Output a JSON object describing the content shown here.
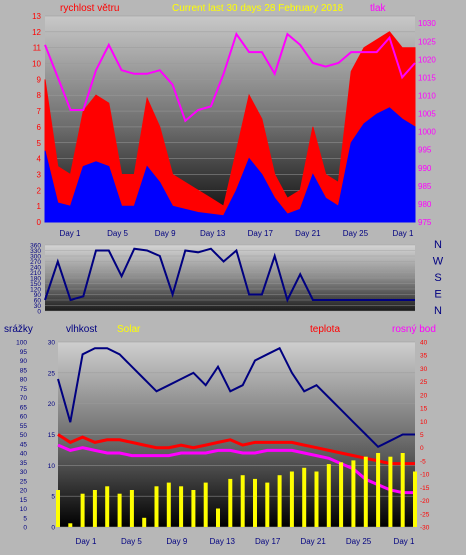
{
  "chart_data": [
    {
      "id": "wind_pressure",
      "type": "line",
      "title": "Current last 30 days 28 February 2018",
      "left_label": "rychlost větru",
      "right_label": "tlak",
      "left_range": [
        0,
        13
      ],
      "right_range": [
        975,
        1032
      ],
      "left_ticks": [
        "0",
        "1",
        "2",
        "3",
        "4",
        "5",
        "6",
        "7",
        "8",
        "9",
        "10",
        "11",
        "12",
        "13"
      ],
      "right_ticks": [
        "975",
        "980",
        "985",
        "990",
        "995",
        "1000",
        "1005",
        "1010",
        "1015",
        "1020",
        "1025",
        "1030"
      ],
      "day_ticks": [
        "Day 1",
        "Day 5",
        "Day 9",
        "Day 13",
        "Day 17",
        "Day 21",
        "Day 25",
        "Day 1"
      ],
      "series": [
        {
          "key": "gust",
          "axis": "left",
          "color": "#ff0000",
          "fill": true,
          "values": [
            9,
            3.5,
            3,
            7,
            8,
            7.5,
            3,
            3,
            7.8,
            6,
            3,
            2.5,
            2,
            1.5,
            1,
            4.5,
            8,
            6.5,
            3,
            1.5,
            2,
            6,
            3,
            2.5,
            9.5,
            11,
            11.5,
            12,
            11,
            11
          ]
        },
        {
          "key": "speed",
          "axis": "left",
          "color": "#0000ff",
          "fill": true,
          "values": [
            4.5,
            1.2,
            1,
            3.5,
            3.8,
            3.5,
            1,
            1,
            3.5,
            2.5,
            1,
            0.8,
            0.6,
            0.5,
            0.4,
            2,
            4,
            3,
            1.5,
            0.5,
            0.8,
            3,
            1.5,
            1,
            5,
            6.2,
            6.8,
            7.2,
            6.5,
            6
          ]
        },
        {
          "key": "pressure",
          "axis": "right",
          "color": "#ff00ff",
          "fill": false,
          "values": [
            1024,
            1015,
            1006,
            1006,
            1017,
            1024,
            1017,
            1016,
            1016,
            1017,
            1013,
            1003,
            1006,
            1007,
            1016,
            1027,
            1022,
            1022,
            1016,
            1027,
            1024,
            1019,
            1018,
            1019,
            1022,
            1022,
            1022,
            1026,
            1015,
            1019
          ]
        }
      ]
    },
    {
      "id": "wind_direction",
      "type": "line",
      "left_range": [
        0,
        360
      ],
      "left_ticks": [
        "0",
        "30",
        "60",
        "90",
        "120",
        "150",
        "180",
        "210",
        "240",
        "270",
        "300",
        "330",
        "360"
      ],
      "compass_labels": [
        "N",
        "W",
        "S",
        "E",
        "N"
      ],
      "series": [
        {
          "key": "direction",
          "color": "#000080",
          "fill": false,
          "values": [
            60,
            270,
            60,
            80,
            330,
            330,
            190,
            340,
            330,
            300,
            90,
            330,
            320,
            340,
            270,
            330,
            90,
            90,
            300,
            60,
            200,
            60,
            60,
            60,
            60,
            60,
            60,
            60,
            60,
            60
          ]
        }
      ]
    },
    {
      "id": "temperature_humidity",
      "type": "line",
      "labels": {
        "precip": "srážky",
        "humidity": "vlhkost",
        "solar": "Solar",
        "temp": "teplota",
        "dew": "rosný bod"
      },
      "precip_range": [
        0,
        100
      ],
      "humidity_range": [
        0,
        30
      ],
      "temp_range": [
        -30,
        40
      ],
      "precip_ticks": [
        "0",
        "5",
        "10",
        "15",
        "20",
        "25",
        "30",
        "35",
        "40",
        "45",
        "50",
        "55",
        "60",
        "65",
        "70",
        "75",
        "80",
        "85",
        "90",
        "95",
        "100"
      ],
      "humidity_ticks": [
        "0",
        "5",
        "10",
        "15",
        "20",
        "25",
        "30"
      ],
      "temp_ticks": [
        "-30",
        "-25",
        "-20",
        "-15",
        "-10",
        "-5",
        "0",
        "5",
        "10",
        "15",
        "20",
        "25",
        "30",
        "35",
        "40"
      ],
      "day_ticks": [
        "Day 1",
        "Day 5",
        "Day 9",
        "Day 13",
        "Day 17",
        "Day 21",
        "Day 25",
        "Day 1"
      ],
      "series": [
        {
          "key": "humidity",
          "axis": "humidity",
          "color": "#000080",
          "values": [
            24,
            17,
            28,
            29,
            29,
            28,
            26,
            24,
            22,
            23,
            24,
            25,
            23,
            26,
            22,
            23,
            27,
            28,
            29,
            25,
            22,
            23,
            21,
            19,
            17,
            15,
            13,
            14,
            15,
            15
          ]
        },
        {
          "key": "temperature",
          "axis": "temp",
          "color": "#ff0000",
          "values": [
            5,
            2,
            4,
            2,
            3,
            3,
            2,
            1,
            0,
            0,
            1,
            0,
            1,
            2,
            3,
            1,
            2,
            2,
            2,
            2,
            1,
            0,
            -1,
            -2,
            -3,
            -4,
            -5,
            -6,
            -6,
            -6
          ]
        },
        {
          "key": "dewpoint",
          "axis": "temp",
          "color": "#ff00ff",
          "values": [
            1,
            -1,
            0,
            -1,
            -2,
            -2,
            -3,
            -3,
            -3,
            -3,
            -2,
            -2,
            -2,
            -1,
            -1,
            -2,
            -2,
            -1,
            -1,
            -1,
            -2,
            -3,
            -4,
            -6,
            -8,
            -12,
            -14,
            -16,
            -17,
            -17
          ]
        },
        {
          "key": "solar",
          "axis": "precip",
          "color": "#ffff00",
          "values": [
            20,
            2,
            18,
            20,
            22,
            18,
            20,
            5,
            22,
            24,
            22,
            20,
            24,
            10,
            26,
            28,
            26,
            24,
            28,
            30,
            32,
            30,
            34,
            35,
            36,
            38,
            40,
            38,
            40,
            30
          ]
        },
        {
          "key": "precipitation",
          "axis": "precip",
          "color": "#000080",
          "values": [
            0,
            0,
            0,
            0,
            0,
            0,
            0,
            0,
            0,
            0,
            0,
            0,
            0,
            0,
            0,
            0,
            0,
            0,
            0,
            0,
            0,
            0,
            0,
            0,
            0,
            0,
            0,
            0,
            0,
            0
          ]
        }
      ]
    }
  ]
}
